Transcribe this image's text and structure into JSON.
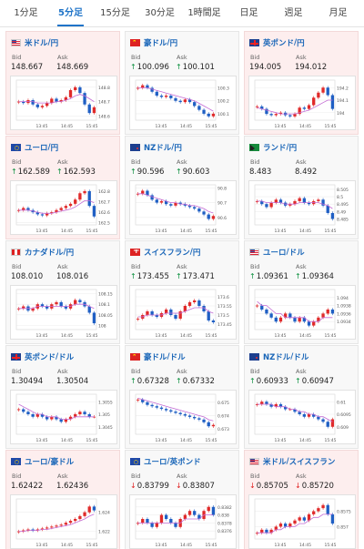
{
  "tabs": [
    "1分足",
    "5分足",
    "15分足",
    "30分足",
    "1時間足",
    "日足",
    "週足",
    "月足"
  ],
  "active_tab": 1,
  "colors": {
    "up": "#e02a2a",
    "down": "#1f5fc4",
    "ma": "#c46bd4",
    "price_up_arrow": "#0a8f3d",
    "price_down_arrow": "#e02020"
  },
  "labels": {
    "bid": "Bid",
    "ask": "Ask"
  },
  "cards": [
    {
      "flag": "us",
      "base": "米ドル",
      "quote": "円",
      "bg": "down",
      "bid_arrow": "",
      "bid": "148.667",
      "ask_arrow": "",
      "ask": "148.669",
      "chart": {
        "x_labels": [
          "13:45",
          "14:45",
          "15:45"
        ],
        "y_labels": [
          "148.8",
          "148.7",
          "148.6"
        ],
        "y_max": 148.85,
        "y_min": 148.57,
        "trend": [
          148.7,
          148.69,
          148.71,
          148.68,
          148.66,
          148.67,
          148.69,
          148.72,
          148.7,
          148.71,
          148.73,
          148.78,
          148.8,
          148.76,
          148.68,
          148.62,
          148.66
        ],
        "ma": [
          148.7,
          148.7,
          148.7,
          148.7,
          148.69,
          148.69,
          148.69,
          148.69,
          148.7,
          148.7,
          148.71,
          148.72,
          148.74,
          148.75,
          148.74,
          148.72,
          148.7
        ]
      }
    },
    {
      "flag": "cn",
      "base": "豪ドル",
      "quote": "円",
      "bg": "flat",
      "bid_arrow": "up",
      "bid": "100.096",
      "ask_arrow": "up",
      "ask": "100.101",
      "chart": {
        "x_labels": [
          "13:45",
          "14:45",
          "15:45"
        ],
        "y_labels": [
          "100.3",
          "100.2",
          "100.1"
        ],
        "y_max": 100.36,
        "y_min": 100.05,
        "trend": [
          100.3,
          100.32,
          100.3,
          100.27,
          100.24,
          100.23,
          100.24,
          100.22,
          100.2,
          100.19,
          100.21,
          100.19,
          100.16,
          100.13,
          100.1,
          100.08,
          100.1
        ],
        "ma": [
          100.3,
          100.3,
          100.3,
          100.29,
          100.28,
          100.27,
          100.26,
          100.25,
          100.24,
          100.23,
          100.22,
          100.21,
          100.2,
          100.18,
          100.16,
          100.14,
          100.12
        ]
      }
    },
    {
      "flag": "gb",
      "base": "英ポンド",
      "quote": "円",
      "bg": "down",
      "bid_arrow": "",
      "bid": "194.005",
      "ask_arrow": "",
      "ask": "194.012",
      "chart": {
        "x_labels": [
          "13:45",
          "14:45",
          "15:45"
        ],
        "y_labels": [
          "194.2",
          "194.1",
          "194"
        ],
        "y_max": 194.26,
        "y_min": 193.94,
        "trend": [
          194.05,
          194.03,
          193.99,
          193.98,
          193.99,
          194.0,
          193.98,
          193.97,
          193.99,
          194.04,
          194.03,
          194.06,
          194.12,
          194.16,
          194.2,
          194.14,
          194.03
        ],
        "ma": [
          194.04,
          194.03,
          194.02,
          194.01,
          194.0,
          193.99,
          193.99,
          193.99,
          193.99,
          194.0,
          194.01,
          194.02,
          194.04,
          194.06,
          194.08,
          194.1,
          194.1
        ]
      }
    },
    {
      "flag": "eu",
      "base": "ユーロ",
      "quote": "円",
      "bg": "down",
      "bid_arrow": "up",
      "bid": "162.589",
      "ask_arrow": "up",
      "ask": "162.593",
      "chart": {
        "x_labels": [
          "13:45",
          "14:45",
          "15:45"
        ],
        "y_labels": [
          "162.8",
          "162.7",
          "162.6",
          "162.5"
        ],
        "y_max": 162.86,
        "y_min": 162.48,
        "trend": [
          162.62,
          162.64,
          162.62,
          162.6,
          162.58,
          162.57,
          162.59,
          162.6,
          162.62,
          162.64,
          162.66,
          162.68,
          162.72,
          162.78,
          162.8,
          162.66,
          162.56
        ],
        "ma": [
          162.62,
          162.62,
          162.62,
          162.61,
          162.6,
          162.59,
          162.59,
          162.59,
          162.6,
          162.61,
          162.62,
          162.63,
          162.65,
          162.68,
          162.71,
          162.71,
          162.69
        ]
      }
    },
    {
      "flag": "nz",
      "base": "NZドル",
      "quote": "円",
      "bg": "flat",
      "bid_arrow": "up",
      "bid": "90.596",
      "ask_arrow": "up",
      "ask": "90.603",
      "chart": {
        "x_labels": [
          "13:45",
          "14:45",
          "15:45"
        ],
        "y_labels": [
          "90.8",
          "90.7",
          "90.6"
        ],
        "y_max": 90.82,
        "y_min": 90.55,
        "trend": [
          90.76,
          90.78,
          90.75,
          90.72,
          90.7,
          90.71,
          90.69,
          90.68,
          90.7,
          90.69,
          90.68,
          90.67,
          90.66,
          90.64,
          90.62,
          90.59,
          90.61
        ],
        "ma": [
          90.76,
          90.76,
          90.75,
          90.74,
          90.73,
          90.72,
          90.71,
          90.7,
          90.7,
          90.69,
          90.69,
          90.68,
          90.68,
          90.67,
          90.66,
          90.64,
          90.63
        ]
      }
    },
    {
      "flag": "za",
      "base": "ランド",
      "quote": "円",
      "bg": "flat",
      "bid_arrow": "",
      "bid": "8.483",
      "ask_arrow": "",
      "ask": "8.492",
      "chart": {
        "x_labels": [
          "13:45",
          "14:45",
          "15:45"
        ],
        "y_labels": [
          "8.505",
          "8.5",
          "8.495",
          "8.49",
          "8.485"
        ],
        "y_max": 8.508,
        "y_min": 8.481,
        "trend": [
          8.497,
          8.495,
          8.493,
          8.496,
          8.498,
          8.496,
          8.494,
          8.495,
          8.497,
          8.499,
          8.496,
          8.495,
          8.497,
          8.498,
          8.494,
          8.489,
          8.485
        ],
        "ma": [
          8.497,
          8.497,
          8.496,
          8.496,
          8.496,
          8.496,
          8.495,
          8.495,
          8.495,
          8.496,
          8.496,
          8.496,
          8.496,
          8.496,
          8.495,
          8.494,
          8.492
        ]
      }
    },
    {
      "flag": "ca",
      "base": "カナダドル",
      "quote": "円",
      "bg": "flat",
      "bid_arrow": "",
      "bid": "108.010",
      "ask_arrow": "",
      "ask": "108.016",
      "chart": {
        "x_labels": [
          "13:45",
          "14:45",
          "15:45"
        ],
        "y_labels": [
          "108.15",
          "108.1",
          "108.05",
          "108"
        ],
        "y_max": 108.17,
        "y_min": 107.98,
        "trend": [
          108.08,
          108.09,
          108.07,
          108.08,
          108.1,
          108.09,
          108.08,
          108.1,
          108.11,
          108.09,
          108.08,
          108.1,
          108.12,
          108.11,
          108.09,
          108.06,
          108.01
        ],
        "ma": [
          108.08,
          108.08,
          108.08,
          108.08,
          108.09,
          108.09,
          108.09,
          108.09,
          108.09,
          108.09,
          108.09,
          108.09,
          108.1,
          108.1,
          108.1,
          108.09,
          108.08
        ]
      }
    },
    {
      "flag": "ch",
      "base": "スイスフラン",
      "quote": "円",
      "bg": "flat",
      "bid_arrow": "up",
      "bid": "173.455",
      "ask_arrow": "up",
      "ask": "173.471",
      "chart": {
        "x_labels": [
          "13:45",
          "14:45",
          "15:45"
        ],
        "y_labels": [
          "173.6",
          "173.55",
          "173.5",
          "173.45"
        ],
        "y_max": 173.64,
        "y_min": 173.42,
        "trend": [
          173.48,
          173.5,
          173.52,
          173.5,
          173.49,
          173.51,
          173.53,
          173.5,
          173.48,
          173.52,
          173.55,
          173.57,
          173.58,
          173.55,
          173.52,
          173.47,
          173.46
        ],
        "ma": [
          173.49,
          173.49,
          173.5,
          173.5,
          173.5,
          173.5,
          173.51,
          173.51,
          173.51,
          173.51,
          173.52,
          173.53,
          173.54,
          173.54,
          173.54,
          173.52,
          173.51
        ]
      }
    },
    {
      "flag": "us",
      "base": "ユーロ",
      "quote": "ドル",
      "bg": "flat",
      "bid_arrow": "up",
      "bid": "1.09361",
      "ask_arrow": "up",
      "ask": "1.09364",
      "chart": {
        "x_labels": [
          "13:45",
          "14:45",
          "15:45"
        ],
        "y_labels": [
          "1.094",
          "1.0938",
          "1.0936",
          "1.0934"
        ],
        "y_max": 1.0942,
        "y_min": 1.0932,
        "trend": [
          1.0938,
          1.0937,
          1.0936,
          1.0935,
          1.0934,
          1.0935,
          1.0936,
          1.0935,
          1.0934,
          1.0935,
          1.0934,
          1.0933,
          1.0934,
          1.0935,
          1.0936,
          1.0937,
          1.0936
        ],
        "ma": [
          1.0939,
          1.0938,
          1.0938,
          1.0937,
          1.0936,
          1.0936,
          1.0935,
          1.0935,
          1.0935,
          1.0935,
          1.0935,
          1.0934,
          1.0934,
          1.0934,
          1.0935,
          1.0935,
          1.0935
        ]
      }
    },
    {
      "flag": "gb",
      "base": "英ポンド",
      "quote": "ドル",
      "bg": "flat",
      "bid_arrow": "",
      "bid": "1.30494",
      "ask_arrow": "",
      "ask": "1.30504",
      "chart": {
        "x_labels": [
          "13:45",
          "14:45",
          "15:45"
        ],
        "y_labels": [
          "1.3055",
          "1.305",
          "1.3045"
        ],
        "y_max": 1.3058,
        "y_min": 1.3042,
        "trend": [
          1.3052,
          1.3051,
          1.305,
          1.3049,
          1.305,
          1.3049,
          1.3048,
          1.3049,
          1.3048,
          1.3047,
          1.3048,
          1.3049,
          1.305,
          1.3051,
          1.305,
          1.3049,
          1.3049
        ],
        "ma": [
          1.3054,
          1.3053,
          1.3052,
          1.3051,
          1.305,
          1.305,
          1.3049,
          1.3049,
          1.3049,
          1.3048,
          1.3048,
          1.3048,
          1.3049,
          1.3049,
          1.3049,
          1.3049,
          1.3049
        ]
      }
    },
    {
      "flag": "cn",
      "base": "豪ドル",
      "quote": "ドル",
      "bg": "flat",
      "bid_arrow": "up",
      "bid": "0.67328",
      "ask_arrow": "up",
      "ask": "0.67332",
      "chart": {
        "x_labels": [
          "13:45",
          "14:45",
          "15:45"
        ],
        "y_labels": [
          "0.675",
          "0.674",
          "0.673"
        ],
        "y_max": 0.6756,
        "y_min": 0.6726,
        "trend": [
          0.6752,
          0.675,
          0.6748,
          0.6747,
          0.6746,
          0.6745,
          0.6744,
          0.6743,
          0.6742,
          0.6741,
          0.674,
          0.6739,
          0.6738,
          0.6737,
          0.6735,
          0.6732,
          0.6733
        ],
        "ma": [
          0.6753,
          0.6752,
          0.6751,
          0.675,
          0.6749,
          0.6748,
          0.6747,
          0.6746,
          0.6745,
          0.6744,
          0.6743,
          0.6742,
          0.6741,
          0.674,
          0.6739,
          0.6737,
          0.6736
        ]
      }
    },
    {
      "flag": "nz",
      "base": "NZドル",
      "quote": "ドル",
      "bg": "flat",
      "bid_arrow": "up",
      "bid": "0.60933",
      "ask_arrow": "up",
      "ask": "0.60947",
      "chart": {
        "x_labels": [
          "13:45",
          "14:45",
          "15:45"
        ],
        "y_labels": [
          "0.61",
          "0.6095",
          "0.609"
        ],
        "y_max": 0.6103,
        "y_min": 0.6087,
        "trend": [
          0.6099,
          0.61,
          0.6099,
          0.6098,
          0.6099,
          0.6098,
          0.6097,
          0.6097,
          0.6096,
          0.6095,
          0.6094,
          0.6095,
          0.6094,
          0.6093,
          0.6092,
          0.609,
          0.6093
        ],
        "ma": [
          0.6099,
          0.6099,
          0.6099,
          0.6099,
          0.6098,
          0.6098,
          0.6098,
          0.6097,
          0.6097,
          0.6096,
          0.6096,
          0.6095,
          0.6095,
          0.6094,
          0.6094,
          0.6093,
          0.6092
        ]
      }
    },
    {
      "flag": "eu",
      "base": "ユーロ",
      "quote": "豪ドル",
      "bg": "down",
      "bid_arrow": "",
      "bid": "1.62422",
      "ask_arrow": "",
      "ask": "1.62436",
      "chart": {
        "x_labels": [
          "13:45",
          "14:45",
          "15:45"
        ],
        "y_labels": [
          "1.624",
          "1.622"
        ],
        "y_max": 1.6254,
        "y_min": 1.6212,
        "trend": [
          1.622,
          1.6221,
          1.6222,
          1.6221,
          1.6222,
          1.6223,
          1.6224,
          1.6225,
          1.6226,
          1.6227,
          1.6229,
          1.6231,
          1.6233,
          1.6236,
          1.624,
          1.6246,
          1.6242
        ],
        "ma": [
          1.622,
          1.622,
          1.6221,
          1.6221,
          1.6221,
          1.6222,
          1.6222,
          1.6223,
          1.6224,
          1.6225,
          1.6226,
          1.6227,
          1.6229,
          1.6231,
          1.6233,
          1.6236,
          1.6238
        ]
      }
    },
    {
      "flag": "eu",
      "base": "ユーロ",
      "quote": "英ポンド",
      "bg": "flat",
      "bid_arrow": "down",
      "bid": "0.83799",
      "ask_arrow": "down",
      "ask": "0.83807",
      "chart": {
        "x_labels": [
          "13:45",
          "14:45",
          "15:45"
        ],
        "y_labels": [
          "0.8382",
          "0.838",
          "0.8378",
          "0.8376"
        ],
        "y_max": 0.8384,
        "y_min": 0.8374,
        "trend": [
          0.8378,
          0.8379,
          0.8378,
          0.8377,
          0.8378,
          0.838,
          0.8379,
          0.8378,
          0.8377,
          0.8379,
          0.838,
          0.8381,
          0.838,
          0.8379,
          0.8381,
          0.8382,
          0.838
        ],
        "ma": [
          0.8378,
          0.8378,
          0.8378,
          0.8378,
          0.8378,
          0.8378,
          0.8378,
          0.8378,
          0.8378,
          0.8378,
          0.8379,
          0.8379,
          0.8379,
          0.8379,
          0.838,
          0.838,
          0.838
        ]
      }
    },
    {
      "flag": "us",
      "base": "米ドル",
      "quote": "スイスフラン",
      "bg": "down",
      "bid_arrow": "down",
      "bid": "0.85705",
      "ask_arrow": "down",
      "ask": "0.85720",
      "chart": {
        "x_labels": [
          "13:45",
          "14:45",
          "15:45"
        ],
        "y_labels": [
          "0.8575",
          "0.857"
        ],
        "y_max": 0.8579,
        "y_min": 0.8566,
        "trend": [
          0.8568,
          0.8569,
          0.8568,
          0.8569,
          0.857,
          0.8571,
          0.857,
          0.8571,
          0.8572,
          0.8573,
          0.8572,
          0.8574,
          0.8575,
          0.8576,
          0.8577,
          0.8574,
          0.8571
        ],
        "ma": [
          0.8568,
          0.8568,
          0.8568,
          0.8568,
          0.8569,
          0.8569,
          0.857,
          0.857,
          0.857,
          0.8571,
          0.8571,
          0.8572,
          0.8573,
          0.8573,
          0.8574,
          0.8574,
          0.8574
        ]
      }
    }
  ]
}
